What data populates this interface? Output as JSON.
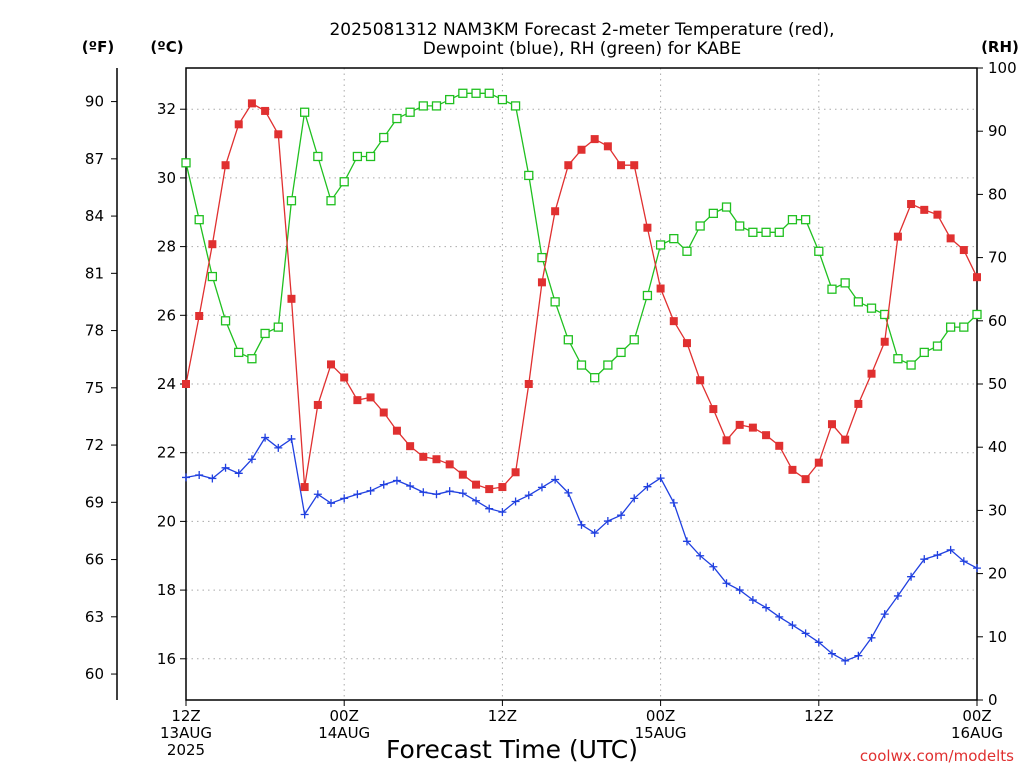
{
  "chart_data": {
    "type": "line",
    "title": [
      "2025081312 NAM3KM Forecast 2-meter Temperature (red),",
      "Dewpoint (blue), RH (green) for KABE"
    ],
    "xlabel": "Forecast Time (UTC)",
    "credit": "coolwx.com/modelts",
    "y_left_c": {
      "unit": "(ºC)",
      "range": [
        14.8,
        33.2
      ],
      "ticks": [
        "16",
        "18",
        "20",
        "22",
        "24",
        "26",
        "28",
        "30",
        "32"
      ]
    },
    "y_left_f": {
      "unit": "(ºF)",
      "ticks": [
        "60",
        "63",
        "66",
        "69",
        "72",
        "75",
        "78",
        "81",
        "84",
        "87",
        "90"
      ]
    },
    "y_right_rh": {
      "unit": "(RH)",
      "range": [
        0,
        100
      ],
      "ticks": [
        "0",
        "10",
        "20",
        "30",
        "40",
        "50",
        "60",
        "70",
        "80",
        "90",
        "100"
      ]
    },
    "x_range_hours": [
      0,
      60
    ],
    "x_ticks": [
      {
        "hour": 0,
        "lines": [
          "12Z",
          "13AUG",
          "2025"
        ]
      },
      {
        "hour": 12,
        "lines": [
          "00Z",
          "14AUG"
        ]
      },
      {
        "hour": 24,
        "lines": [
          "12Z"
        ]
      },
      {
        "hour": 36,
        "lines": [
          "00Z",
          "15AUG"
        ]
      },
      {
        "hour": 48,
        "lines": [
          "12Z"
        ]
      },
      {
        "hour": 60,
        "lines": [
          "00Z",
          "16AUG"
        ]
      }
    ],
    "grid": true,
    "series": [
      {
        "color": "#e03030",
        "axis": "celsius",
        "marker": "filled-square",
        "values": [
          24.0,
          25.98,
          28.07,
          30.37,
          31.56,
          32.17,
          31.95,
          31.27,
          26.48,
          21.0,
          23.39,
          24.57,
          24.19,
          23.53,
          23.61,
          23.17,
          22.64,
          22.19,
          21.88,
          21.81,
          21.66,
          21.36,
          21.07,
          20.94,
          21.0,
          21.43,
          24.0,
          26.96,
          29.03,
          30.37,
          30.82,
          31.13,
          30.92,
          30.37,
          30.37,
          28.55,
          26.78,
          25.83,
          25.19,
          24.11,
          23.27,
          22.36,
          22.81,
          22.73,
          22.51,
          22.2,
          21.5,
          21.23,
          21.71,
          22.83,
          22.38,
          23.42,
          24.3,
          25.23,
          28.29,
          29.24,
          29.07,
          28.93,
          28.24,
          27.9,
          27.11
        ]
      },
      {
        "color": "#2040e0",
        "axis": "celsius",
        "marker": "plus",
        "values": [
          21.28,
          21.35,
          21.25,
          21.56,
          21.4,
          21.81,
          22.44,
          22.14,
          22.4,
          20.2,
          20.79,
          20.53,
          20.67,
          20.79,
          20.89,
          21.07,
          21.19,
          21.03,
          20.85,
          20.79,
          20.88,
          20.82,
          20.6,
          20.37,
          20.27,
          20.58,
          20.76,
          20.99,
          21.22,
          20.83,
          19.9,
          19.66,
          20.01,
          20.18,
          20.67,
          21.01,
          21.26,
          20.54,
          19.42,
          19.0,
          18.68,
          18.2,
          18.0,
          17.71,
          17.49,
          17.22,
          16.98,
          16.74,
          16.48,
          16.15,
          15.94,
          16.09,
          16.61,
          17.3,
          17.83,
          18.39,
          18.9,
          19.02,
          19.17,
          18.84,
          18.64
        ]
      },
      {
        "color": "#20c020",
        "axis": "rh",
        "marker": "open-square",
        "values": [
          85,
          76,
          67,
          60,
          55,
          54,
          58,
          59,
          79,
          93,
          86,
          79,
          82,
          86,
          86,
          89,
          92,
          93,
          94,
          94,
          95,
          96,
          96,
          96,
          95,
          94,
          83,
          70,
          63,
          57,
          53,
          51,
          53,
          55,
          57,
          64,
          72,
          73,
          71,
          75,
          77,
          78,
          75,
          74,
          74,
          74,
          76,
          76,
          71,
          65,
          66,
          63,
          62,
          61,
          54,
          53,
          55,
          56,
          59,
          59,
          61
        ]
      }
    ]
  }
}
